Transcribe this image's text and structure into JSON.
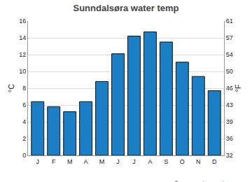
{
  "chart_data": {
    "type": "bar",
    "title": "Sunndalsøra water temp",
    "categories": [
      "J",
      "F",
      "M",
      "A",
      "M",
      "J",
      "J",
      "A",
      "S",
      "O",
      "N",
      "D"
    ],
    "values": [
      6.4,
      5.8,
      5.2,
      6.4,
      8.8,
      12.1,
      14.2,
      14.7,
      13.5,
      11.1,
      9.4,
      7.7
    ],
    "color": "#1a7fc4",
    "ylabel": "°C",
    "y2label": "°F",
    "ylim": [
      0,
      16
    ],
    "yticks": [
      0,
      2,
      4,
      6,
      8,
      10,
      12,
      14,
      16
    ],
    "y2lim": [
      32,
      60.8
    ],
    "y2ticks": [
      {
        "value": 32,
        "label": "32"
      },
      {
        "value": 35.6,
        "label": "36"
      },
      {
        "value": 39.2,
        "label": "39"
      },
      {
        "value": 42.8,
        "label": "43"
      },
      {
        "value": 46.4,
        "label": "46"
      },
      {
        "value": 50,
        "label": "50"
      },
      {
        "value": 53.6,
        "label": "54"
      },
      {
        "value": 57.2,
        "label": "57"
      },
      {
        "value": 60.8,
        "label": "61"
      }
    ],
    "grid": true,
    "annotations": [
      "© www.seatemperature.org"
    ]
  }
}
